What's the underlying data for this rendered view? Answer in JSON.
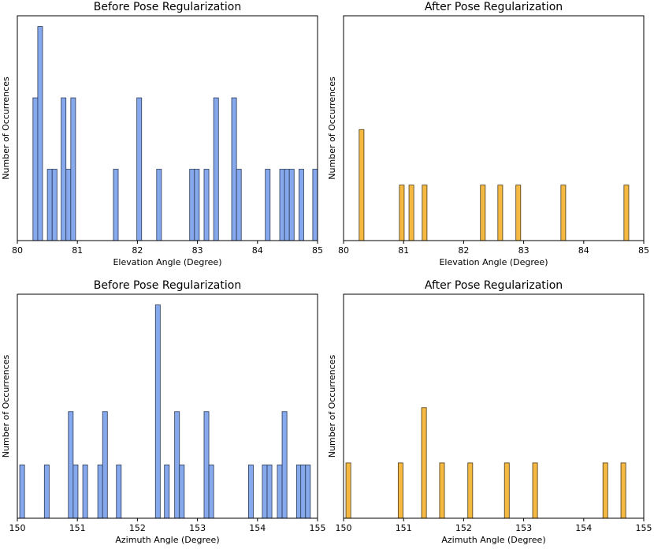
{
  "chart_data": [
    {
      "type": "histogram",
      "title": "Before Pose Regularization",
      "x_label": "Elevation Angle (Degree)",
      "y_label": "Number of Occurrences",
      "color": "#86a8ec",
      "edge_color": "#2b3a55",
      "bar_width": 0.08,
      "x": [
        80.26,
        80.34,
        80.5,
        80.58,
        80.73,
        80.81,
        80.89,
        81.6,
        81.99,
        82.32,
        82.87,
        82.95,
        83.11,
        83.27,
        83.57,
        83.65,
        84.13,
        84.37,
        84.45,
        84.53,
        84.69,
        84.92
      ],
      "values": [
        2,
        3,
        1,
        1,
        2,
        1,
        2,
        1,
        2,
        1,
        1,
        1,
        1,
        2,
        2,
        1,
        1,
        1,
        1,
        1,
        1,
        1
      ],
      "xlim": [
        80,
        85
      ],
      "xticks": [
        80,
        81,
        82,
        83,
        84,
        85
      ],
      "ylim": [
        0,
        3.15
      ]
    },
    {
      "type": "histogram",
      "title": "After Pose Regularization",
      "x_label": "Elevation Angle (Degree)",
      "y_label": "Number of Occurrences",
      "color": "#f5b942",
      "edge_color": "#4a3a1a",
      "bar_width": 0.08,
      "x": [
        80.26,
        80.93,
        81.09,
        81.31,
        82.28,
        82.57,
        82.87,
        83.62,
        84.67
      ],
      "values": [
        2,
        1,
        1,
        1,
        1,
        1,
        1,
        1,
        1
      ],
      "xlim": [
        80,
        85
      ],
      "xticks": [
        80,
        81,
        82,
        83,
        84,
        85
      ],
      "ylim": [
        0,
        4.05
      ]
    },
    {
      "type": "histogram",
      "title": "Before Pose Regularization",
      "x_label": "Azimuth Angle (Degree)",
      "y_label": "Number of Occurrences",
      "color": "#86a8ec",
      "edge_color": "#2b3a55",
      "bar_width": 0.08,
      "x": [
        150.04,
        150.45,
        150.85,
        150.93,
        151.09,
        151.34,
        151.42,
        151.65,
        152.3,
        152.45,
        152.62,
        152.7,
        153.11,
        153.19,
        153.85,
        154.08,
        154.16,
        154.33,
        154.41,
        154.65,
        154.72,
        154.8
      ],
      "values": [
        1,
        1,
        2,
        1,
        1,
        1,
        2,
        1,
        4,
        1,
        2,
        1,
        2,
        1,
        1,
        1,
        1,
        1,
        2,
        1,
        1,
        1
      ],
      "xlim": [
        150,
        155
      ],
      "xticks": [
        150,
        151,
        152,
        153,
        154,
        155
      ],
      "ylim": [
        0,
        4.2
      ]
    },
    {
      "type": "histogram",
      "title": "After Pose Regularization",
      "x_label": "Azimuth Angle (Degree)",
      "y_label": "Number of Occurrences",
      "color": "#f5b942",
      "edge_color": "#4a3a1a",
      "bar_width": 0.08,
      "x": [
        150.04,
        150.91,
        151.3,
        151.6,
        152.07,
        152.68,
        153.15,
        154.32,
        154.62
      ],
      "values": [
        1,
        1,
        2,
        1,
        1,
        1,
        1,
        1,
        1
      ],
      "xlim": [
        150,
        155
      ],
      "xticks": [
        150,
        151,
        152,
        153,
        154,
        155
      ],
      "ylim": [
        0,
        4.05
      ]
    }
  ]
}
